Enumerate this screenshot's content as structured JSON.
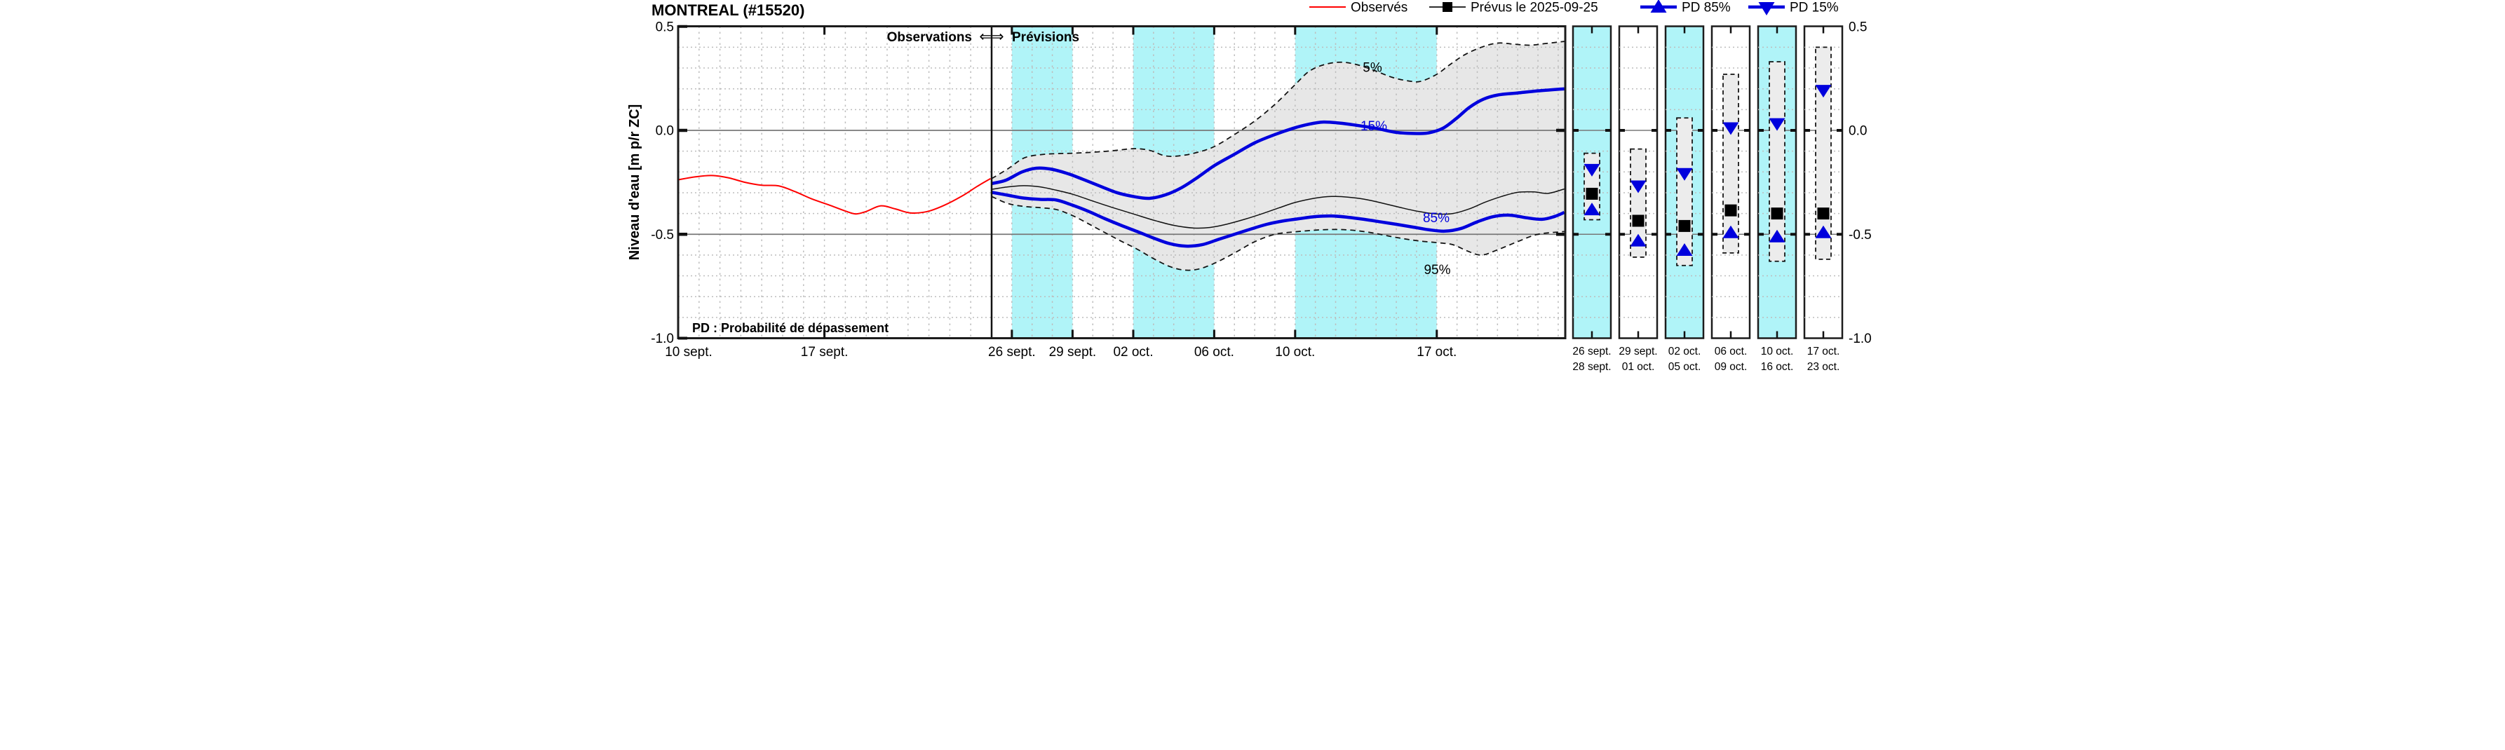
{
  "header": {
    "title": "MONTREAL (#15520)"
  },
  "legend": {
    "items": [
      {
        "label": "Observés",
        "marker": "red-line",
        "color": "#ff0000"
      },
      {
        "label": "Prévus le 2025-09-25",
        "marker": "black-line-square",
        "color": "#000000"
      },
      {
        "label": "PD 85%",
        "marker": "blue-line-triangle-up",
        "color": "#0000dd"
      },
      {
        "label": "PD 15%",
        "marker": "blue-line-triangle-down",
        "color": "#0000dd"
      }
    ]
  },
  "annotations": {
    "observations": "Observations",
    "arrow": "⇐⇒",
    "previsions": "Prévisions",
    "pd_note": "PD : Probabilité de dépassement"
  },
  "curve_labels": {
    "p5": "5%",
    "p15": "15%",
    "p85": "85%",
    "p95": "95%"
  },
  "axes": {
    "y_title": "Niveau d'eau [m p/r ZC]",
    "y_ticks": [
      {
        "label": "0.5",
        "value": 0.5
      },
      {
        "label": "0.0",
        "value": 0.0
      },
      {
        "label": "-0.5",
        "value": -0.5
      },
      {
        "label": "-1.0",
        "value": -1.0
      }
    ],
    "y_solid_lines": [
      0.0,
      -0.5
    ],
    "y_minor_step": 0.1,
    "ylim": [
      -1.0,
      0.5
    ],
    "x_ticks_observed": [
      {
        "label": "10 sept.",
        "day": 0
      },
      {
        "label": "17 sept.",
        "day": 7
      }
    ],
    "x_ticks_forecast": [
      {
        "label": "26 sept.",
        "day": 16
      },
      {
        "label": "29 sept.",
        "day": 19
      },
      {
        "label": "02 oct.",
        "day": 22
      },
      {
        "label": "06 oct.",
        "day": 26
      },
      {
        "label": "10 oct.",
        "day": 30
      },
      {
        "label": "17 oct.",
        "day": 37
      }
    ]
  },
  "chart_data": {
    "type": "line",
    "title": "MONTREAL (#15520)",
    "ylabel": "Niveau d'eau [m p/r ZC]",
    "ylim": [
      -1.0,
      0.5
    ],
    "day_index_origin": "2025-09-10",
    "forecast_issue_day": 15,
    "x_end_day": 43.35,
    "highlight_bands_days": [
      [
        16,
        19
      ],
      [
        22,
        26
      ],
      [
        30,
        37
      ]
    ],
    "series": {
      "observed": [
        [
          0,
          -0.238
        ],
        [
          0.8,
          -0.224
        ],
        [
          1.6,
          -0.217
        ],
        [
          2.4,
          -0.228
        ],
        [
          3.2,
          -0.25
        ],
        [
          4,
          -0.264
        ],
        [
          4.8,
          -0.267
        ],
        [
          5.6,
          -0.295
        ],
        [
          6.4,
          -0.33
        ],
        [
          7.2,
          -0.358
        ],
        [
          8,
          -0.388
        ],
        [
          8.5,
          -0.402
        ],
        [
          9,
          -0.39
        ],
        [
          9.7,
          -0.363
        ],
        [
          10.4,
          -0.378
        ],
        [
          11.1,
          -0.397
        ],
        [
          11.9,
          -0.391
        ],
        [
          12.7,
          -0.362
        ],
        [
          13.6,
          -0.315
        ],
        [
          14.3,
          -0.27
        ],
        [
          14.95,
          -0.232
        ]
      ],
      "p5": [
        [
          15,
          -0.232
        ],
        [
          15.8,
          -0.185
        ],
        [
          16.6,
          -0.133
        ],
        [
          17.4,
          -0.117
        ],
        [
          18.2,
          -0.112
        ],
        [
          19,
          -0.11
        ],
        [
          20,
          -0.105
        ],
        [
          21,
          -0.098
        ],
        [
          22,
          -0.088
        ],
        [
          22.8,
          -0.096
        ],
        [
          23.6,
          -0.123
        ],
        [
          24.4,
          -0.121
        ],
        [
          25.2,
          -0.105
        ],
        [
          26,
          -0.078
        ],
        [
          27,
          -0.02
        ],
        [
          28,
          0.045
        ],
        [
          29,
          0.125
        ],
        [
          30,
          0.22
        ],
        [
          30.7,
          0.285
        ],
        [
          31.5,
          0.318
        ],
        [
          32.3,
          0.328
        ],
        [
          33.1,
          0.315
        ],
        [
          34,
          0.285
        ],
        [
          34.8,
          0.255
        ],
        [
          35.6,
          0.238
        ],
        [
          36.2,
          0.236
        ],
        [
          37,
          0.27
        ],
        [
          37.7,
          0.32
        ],
        [
          38.4,
          0.365
        ],
        [
          39.2,
          0.4
        ],
        [
          40,
          0.42
        ],
        [
          40.8,
          0.415
        ],
        [
          41.6,
          0.41
        ],
        [
          42.4,
          0.418
        ],
        [
          43.3,
          0.428
        ]
      ],
      "p15": [
        [
          15,
          -0.256
        ],
        [
          15.7,
          -0.24
        ],
        [
          16.5,
          -0.2
        ],
        [
          17.2,
          -0.182
        ],
        [
          17.9,
          -0.186
        ],
        [
          18.7,
          -0.206
        ],
        [
          19.5,
          -0.235
        ],
        [
          20.4,
          -0.27
        ],
        [
          21.2,
          -0.3
        ],
        [
          22,
          -0.318
        ],
        [
          22.8,
          -0.327
        ],
        [
          23.6,
          -0.31
        ],
        [
          24.4,
          -0.275
        ],
        [
          25.2,
          -0.225
        ],
        [
          26,
          -0.17
        ],
        [
          27,
          -0.115
        ],
        [
          28,
          -0.06
        ],
        [
          29,
          -0.02
        ],
        [
          29.9,
          0.01
        ],
        [
          30.7,
          0.03
        ],
        [
          31.4,
          0.04
        ],
        [
          32.2,
          0.035
        ],
        [
          33,
          0.025
        ],
        [
          34,
          0.01
        ],
        [
          35,
          -0.01
        ],
        [
          36,
          -0.015
        ],
        [
          36.6,
          -0.012
        ],
        [
          37.3,
          0.01
        ],
        [
          38,
          0.06
        ],
        [
          38.6,
          0.11
        ],
        [
          39.3,
          0.15
        ],
        [
          40,
          0.17
        ],
        [
          41,
          0.18
        ],
        [
          42,
          0.19
        ],
        [
          43.3,
          0.2
        ]
      ],
      "median": [
        [
          15,
          -0.284
        ],
        [
          15.8,
          -0.272
        ],
        [
          16.6,
          -0.266
        ],
        [
          17.4,
          -0.272
        ],
        [
          18.2,
          -0.288
        ],
        [
          19,
          -0.307
        ],
        [
          20,
          -0.34
        ],
        [
          21,
          -0.372
        ],
        [
          22,
          -0.402
        ],
        [
          23,
          -0.432
        ],
        [
          24,
          -0.457
        ],
        [
          25,
          -0.47
        ],
        [
          25.8,
          -0.467
        ],
        [
          26.6,
          -0.452
        ],
        [
          27.5,
          -0.428
        ],
        [
          28.4,
          -0.4
        ],
        [
          29.2,
          -0.373
        ],
        [
          30,
          -0.347
        ],
        [
          31,
          -0.326
        ],
        [
          31.8,
          -0.318
        ],
        [
          32.6,
          -0.321
        ],
        [
          33.4,
          -0.331
        ],
        [
          34.3,
          -0.35
        ],
        [
          35.2,
          -0.371
        ],
        [
          36.1,
          -0.39
        ],
        [
          37,
          -0.402
        ],
        [
          37.8,
          -0.4
        ],
        [
          38.6,
          -0.378
        ],
        [
          39.4,
          -0.345
        ],
        [
          40.2,
          -0.318
        ],
        [
          41,
          -0.298
        ],
        [
          41.8,
          -0.296
        ],
        [
          42.5,
          -0.303
        ],
        [
          43.3,
          -0.282
        ]
      ],
      "p85": [
        [
          15,
          -0.298
        ],
        [
          15.8,
          -0.312
        ],
        [
          16.6,
          -0.326
        ],
        [
          17.4,
          -0.332
        ],
        [
          18.2,
          -0.335
        ],
        [
          19,
          -0.36
        ],
        [
          19.8,
          -0.39
        ],
        [
          20.6,
          -0.425
        ],
        [
          21.4,
          -0.457
        ],
        [
          22.2,
          -0.487
        ],
        [
          23,
          -0.518
        ],
        [
          23.8,
          -0.545
        ],
        [
          24.6,
          -0.557
        ],
        [
          25.4,
          -0.55
        ],
        [
          26.2,
          -0.525
        ],
        [
          27,
          -0.5
        ],
        [
          27.8,
          -0.475
        ],
        [
          28.6,
          -0.452
        ],
        [
          29.4,
          -0.436
        ],
        [
          30.2,
          -0.425
        ],
        [
          31,
          -0.415
        ],
        [
          31.8,
          -0.412
        ],
        [
          32.6,
          -0.418
        ],
        [
          33.4,
          -0.428
        ],
        [
          34.2,
          -0.44
        ],
        [
          35,
          -0.452
        ],
        [
          35.8,
          -0.465
        ],
        [
          36.6,
          -0.478
        ],
        [
          37.4,
          -0.485
        ],
        [
          38.2,
          -0.472
        ],
        [
          39,
          -0.44
        ],
        [
          39.8,
          -0.415
        ],
        [
          40.6,
          -0.408
        ],
        [
          41.4,
          -0.42
        ],
        [
          42.2,
          -0.428
        ],
        [
          42.8,
          -0.415
        ],
        [
          43.3,
          -0.395
        ]
      ],
      "p95": [
        [
          15,
          -0.318
        ],
        [
          15.8,
          -0.352
        ],
        [
          16.6,
          -0.366
        ],
        [
          17.4,
          -0.372
        ],
        [
          18.2,
          -0.381
        ],
        [
          19,
          -0.41
        ],
        [
          19.8,
          -0.45
        ],
        [
          20.6,
          -0.492
        ],
        [
          21.4,
          -0.533
        ],
        [
          22.2,
          -0.572
        ],
        [
          23,
          -0.617
        ],
        [
          23.8,
          -0.655
        ],
        [
          24.5,
          -0.672
        ],
        [
          25.2,
          -0.668
        ],
        [
          26,
          -0.64
        ],
        [
          27,
          -0.59
        ],
        [
          28,
          -0.536
        ],
        [
          29,
          -0.5
        ],
        [
          29.8,
          -0.49
        ],
        [
          30.6,
          -0.483
        ],
        [
          31.4,
          -0.478
        ],
        [
          32.2,
          -0.477
        ],
        [
          33,
          -0.482
        ],
        [
          33.8,
          -0.493
        ],
        [
          34.6,
          -0.508
        ],
        [
          35.4,
          -0.522
        ],
        [
          36.2,
          -0.533
        ],
        [
          37,
          -0.54
        ],
        [
          37.8,
          -0.55
        ],
        [
          38.5,
          -0.58
        ],
        [
          39.2,
          -0.6
        ],
        [
          40,
          -0.575
        ],
        [
          41,
          -0.535
        ],
        [
          42,
          -0.5
        ],
        [
          43.3,
          -0.487
        ]
      ]
    },
    "panels": [
      {
        "label_start": "26 sept.",
        "label_end": "28 sept.",
        "cyan": true,
        "p5": -0.11,
        "pd15": -0.19,
        "median": -0.305,
        "pd85": -0.38,
        "p95": -0.43
      },
      {
        "label_start": "29 sept.",
        "label_end": "01 oct.",
        "cyan": false,
        "p5": -0.09,
        "pd15": -0.27,
        "median": -0.435,
        "pd85": -0.53,
        "p95": -0.61
      },
      {
        "label_start": "02 oct.",
        "label_end": "05 oct.",
        "cyan": true,
        "p5": 0.06,
        "pd15": -0.21,
        "median": -0.46,
        "pd85": -0.575,
        "p95": -0.65
      },
      {
        "label_start": "06 oct.",
        "label_end": "09 oct.",
        "cyan": false,
        "p5": 0.27,
        "pd15": 0.01,
        "median": -0.385,
        "pd85": -0.49,
        "p95": -0.59
      },
      {
        "label_start": "10 oct.",
        "label_end": "16 oct.",
        "cyan": true,
        "p5": 0.33,
        "pd15": 0.03,
        "median": -0.4,
        "pd85": -0.51,
        "p95": -0.63
      },
      {
        "label_start": "17 oct.",
        "label_end": "23 oct.",
        "cyan": false,
        "p5": 0.4,
        "pd15": 0.19,
        "median": -0.4,
        "pd85": -0.49,
        "p95": -0.62
      }
    ]
  },
  "colors": {
    "observed_red": "#ff0000",
    "forecast_blue": "#0000dd",
    "median_black": "#111111",
    "band_cyan": "#b0f4f8",
    "envelope_gray": "#e7e7e7",
    "panel_box_gray": "#ececec",
    "grid_gray": "#bdbdbd",
    "ref_line_gray": "#787878",
    "frame_black": "#1c1c1c"
  }
}
